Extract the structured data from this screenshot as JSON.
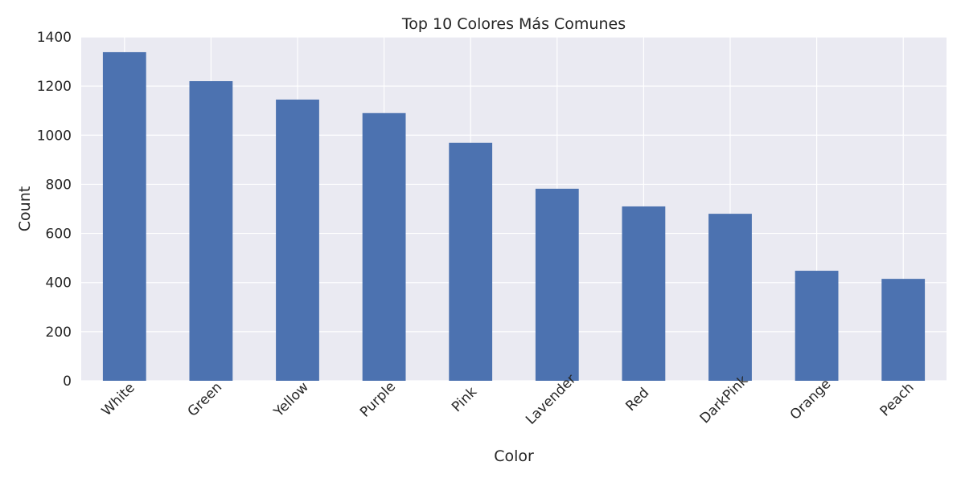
{
  "chart_data": {
    "type": "bar",
    "title": "Top 10 Colores Más Comunes",
    "xlabel": "Color",
    "ylabel": "Count",
    "categories": [
      "White",
      "Green",
      "Yellow",
      "Purple",
      "Pink",
      "Lavender",
      "Red",
      "DarkPink",
      "Orange",
      "Peach"
    ],
    "values": [
      1338,
      1220,
      1145,
      1090,
      969,
      782,
      710,
      680,
      448,
      415
    ],
    "ylim": [
      0,
      1400
    ],
    "yticks": [
      "0",
      "200",
      "400",
      "600",
      "800",
      "1000",
      "1200",
      "1400"
    ],
    "grid": true,
    "legend": "none",
    "colors": {
      "bar": "#4c72b0",
      "plot_background": "#eaeaf2",
      "grid": "#ffffff"
    }
  }
}
